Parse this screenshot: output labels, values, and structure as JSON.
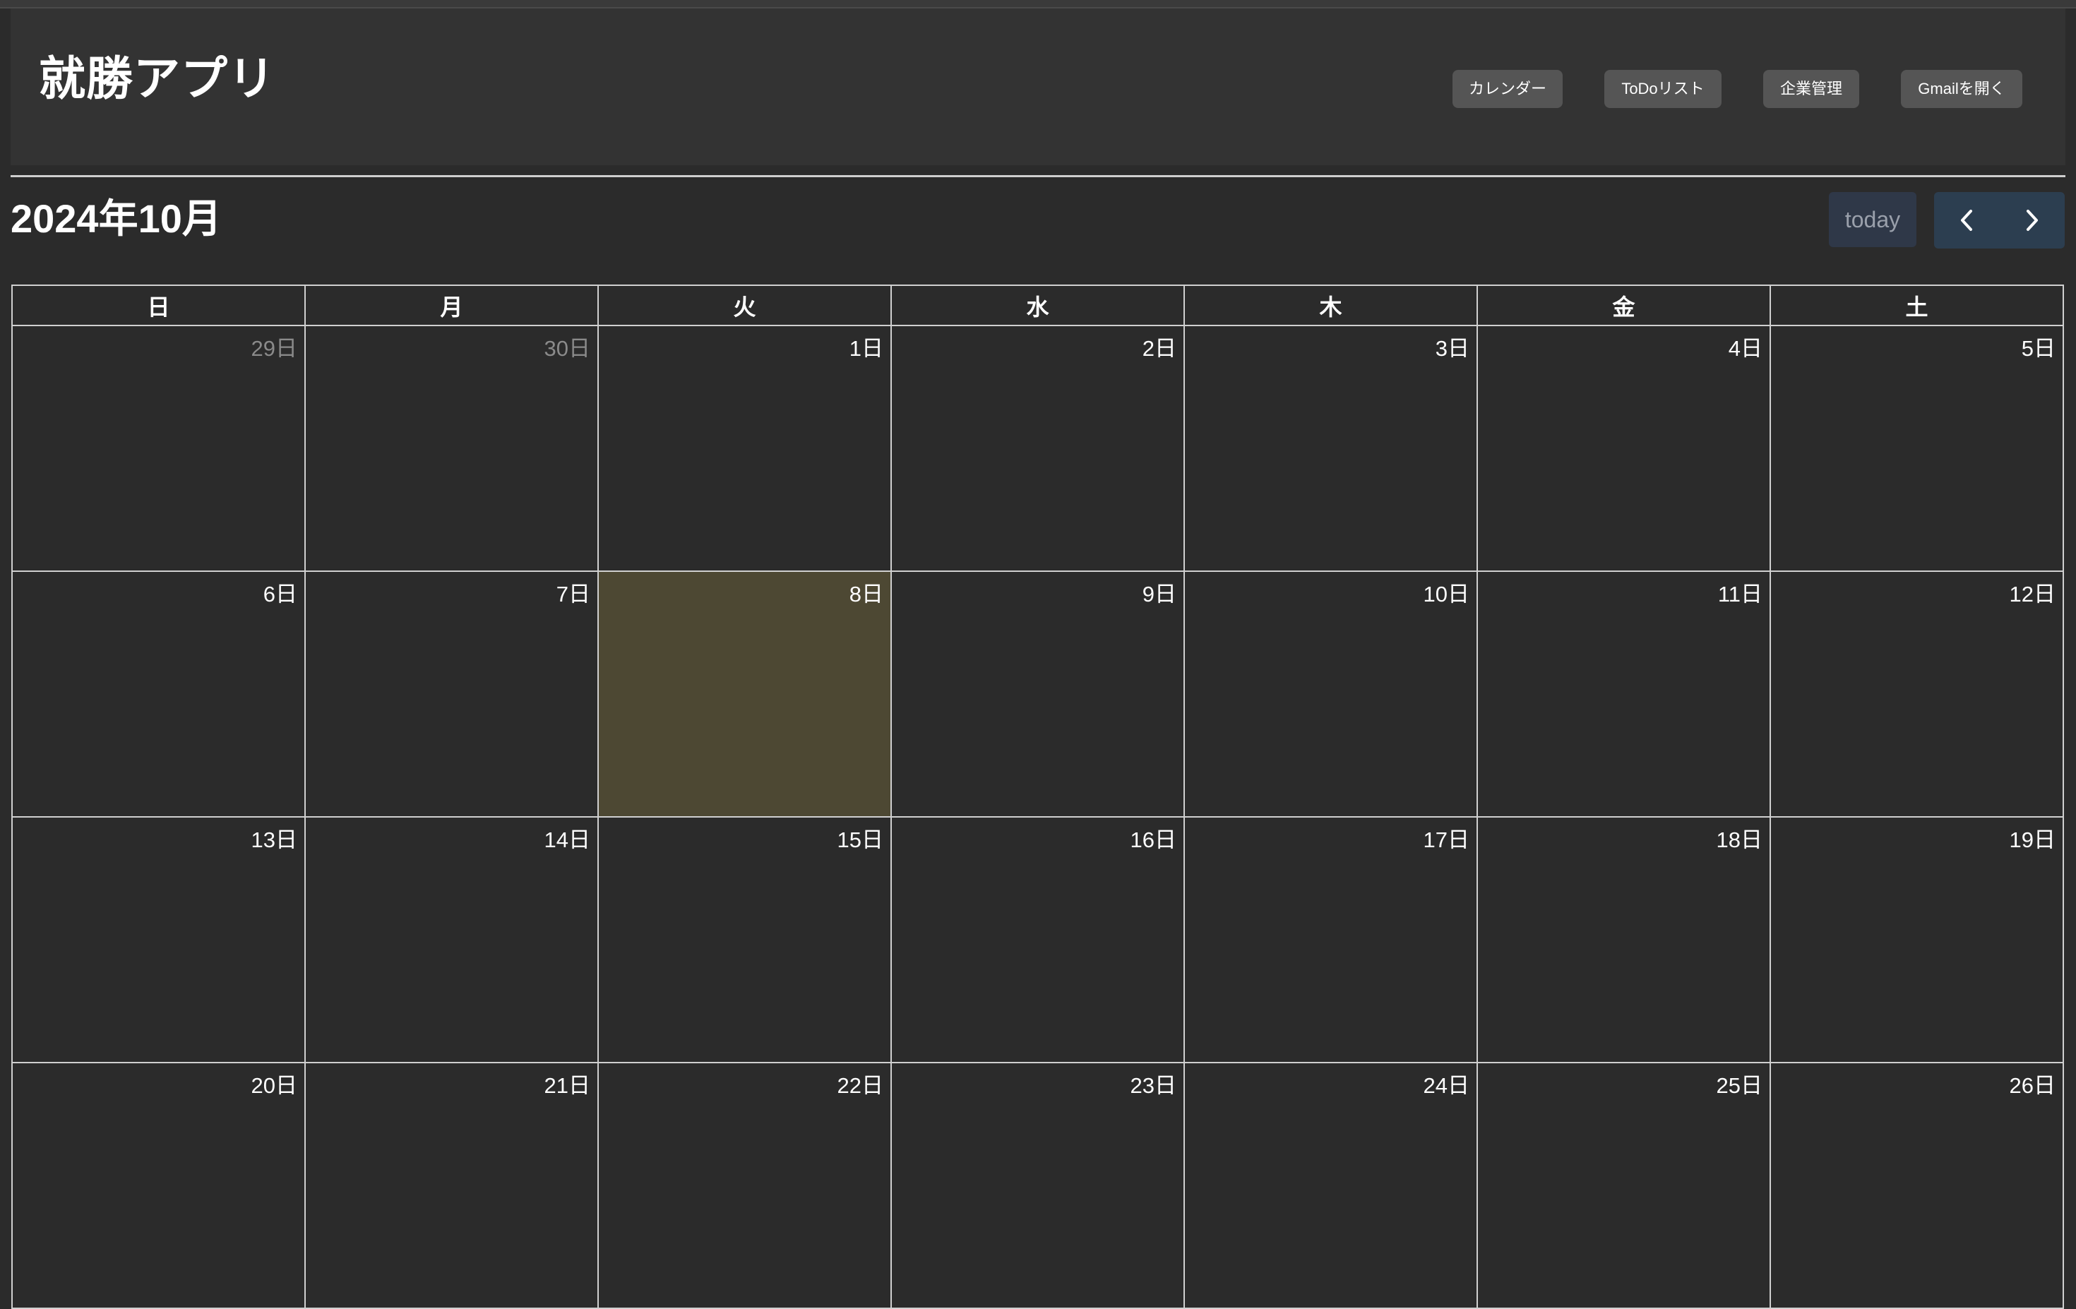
{
  "app": {
    "title": "就勝アプリ"
  },
  "nav": {
    "items": [
      {
        "label": "カレンダー"
      },
      {
        "label": "ToDoリスト"
      },
      {
        "label": "企業管理"
      },
      {
        "label": "Gmailを開く"
      }
    ]
  },
  "calendar": {
    "month_title": "2024年10月",
    "today_label": "today",
    "prev_icon": "chevron-left-icon",
    "next_icon": "chevron-right-icon",
    "weekdays": [
      "日",
      "月",
      "火",
      "水",
      "木",
      "金",
      "土"
    ],
    "today_date": "8日",
    "colors": {
      "background": "#2b2b2b",
      "header": "#333333",
      "today_highlight": "#4d4833",
      "nav_button": "#2c3e50",
      "grid_line": "#d0d0d0",
      "other_month_text": "#8a8a8a"
    },
    "weeks": [
      [
        "29日",
        "30日",
        "1日",
        "2日",
        "3日",
        "4日",
        "5日"
      ],
      [
        "6日",
        "7日",
        "8日",
        "9日",
        "10日",
        "11日",
        "12日"
      ],
      [
        "13日",
        "14日",
        "15日",
        "16日",
        "17日",
        "18日",
        "19日"
      ],
      [
        "20日",
        "21日",
        "22日",
        "23日",
        "24日",
        "25日",
        "26日"
      ]
    ]
  }
}
